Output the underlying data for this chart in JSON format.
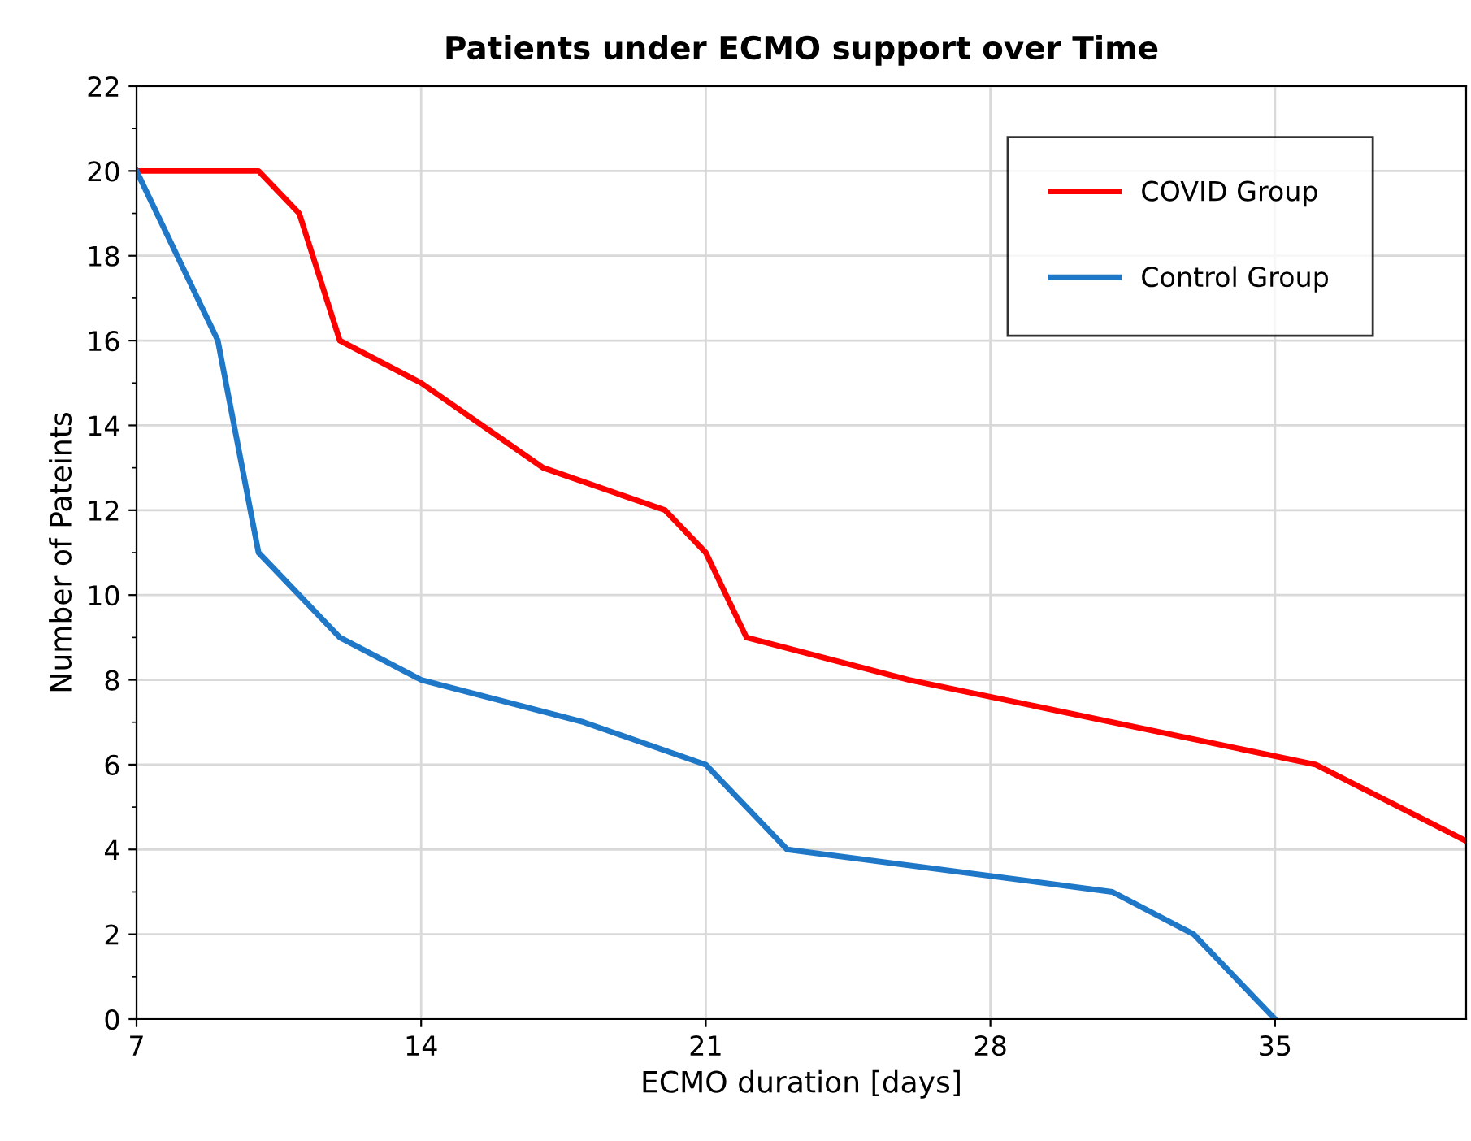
{
  "chart_data": {
    "type": "line",
    "title": "Patients under ECMO support over Time",
    "xlabel": "ECMO duration [days]",
    "ylabel": "Number of Pateints",
    "series": [
      {
        "name": "COVID Group",
        "color": "#ff0000",
        "x": [
          7,
          10,
          11,
          12,
          14,
          17,
          20,
          21,
          22,
          26,
          36,
          39.7
        ],
        "values": [
          20,
          20,
          19,
          16,
          15,
          13,
          12,
          11,
          9,
          8,
          6,
          4.2
        ]
      },
      {
        "name": "Control Group",
        "color": "#1f77c8",
        "x": [
          7,
          9,
          10,
          12,
          14,
          18,
          21,
          23,
          31,
          33,
          35
        ],
        "values": [
          20,
          16,
          11,
          9,
          8,
          7,
          6,
          4,
          3,
          2,
          0
        ]
      }
    ],
    "xlim": [
      7,
      39.7
    ],
    "xticks": [
      7,
      14,
      21,
      28,
      35
    ],
    "ylim": [
      0,
      22
    ],
    "yticks": [
      0,
      2,
      4,
      6,
      8,
      10,
      12,
      14,
      16,
      18,
      20,
      22
    ],
    "grid": true,
    "legend": "top right",
    "marker": "none",
    "line_style": "solid"
  }
}
